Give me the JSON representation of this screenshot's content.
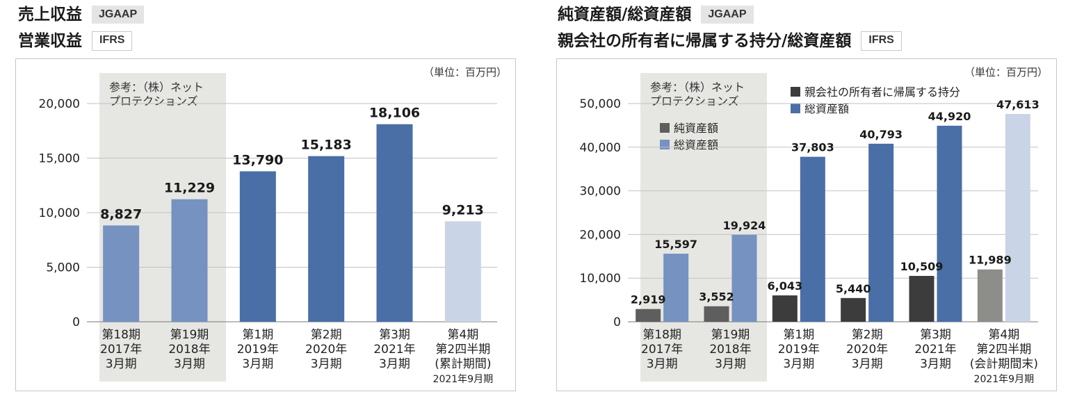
{
  "left": {
    "title1": "売上収益",
    "badge1": "JGAAP",
    "title2": "営業収益",
    "badge2": "IFRS"
  },
  "right": {
    "title1": "純資産額/総資産額",
    "badge1": "JGAAP",
    "title2": "親会社の所有者に帰属する持分/総資産額",
    "badge2": "IFRS"
  },
  "colors": {
    "dark_blue": "#4a6ea6",
    "mid_blue": "#7592c0",
    "light_blue": "#c9d5e6",
    "dark_gray": "#3c3c3c",
    "mid_gray": "#5e5e5e",
    "light_gray": "#8d8d8a",
    "shade": "#e6e6e3"
  },
  "chart_data": [
    {
      "type": "bar",
      "unit_label": "（単位：百万円）",
      "reference_note": [
        "参考：（株）ネット",
        "プロテクションズ"
      ],
      "ylim": [
        0,
        20000
      ],
      "yticks": [
        "0",
        "5,000",
        "10,000",
        "15,000",
        "20,000"
      ],
      "ytick_values": [
        0,
        5000,
        10000,
        15000,
        20000
      ],
      "grid": true,
      "categories": [
        [
          "第18期",
          "2017年",
          "3月期"
        ],
        [
          "第19期",
          "2018年",
          "3月期"
        ],
        [
          "第1期",
          "2019年",
          "3月期"
        ],
        [
          "第2期",
          "2020年",
          "3月期"
        ],
        [
          "第3期",
          "2021年",
          "3月期"
        ],
        [
          "第4期",
          "第2四半期",
          "(累計期間)",
          "2021年9月期"
        ]
      ],
      "values": [
        8827,
        11229,
        13790,
        15183,
        18106,
        9213
      ],
      "labels": [
        "8,827",
        "11,229",
        "13,790",
        "15,183",
        "18,106",
        "9,213"
      ],
      "bar_colors": [
        "#7592c0",
        "#7592c0",
        "#4a6ea6",
        "#4a6ea6",
        "#4a6ea6",
        "#c9d5e6"
      ]
    },
    {
      "type": "bar",
      "unit_label": "（単位：百万円）",
      "reference_note": [
        "参考：（株）ネット",
        "プロテクションズ"
      ],
      "ylim": [
        0,
        50000
      ],
      "yticks": [
        "0",
        "10,000",
        "20,000",
        "30,000",
        "40,000",
        "50,000"
      ],
      "ytick_values": [
        0,
        10000,
        20000,
        30000,
        40000,
        50000
      ],
      "grid": true,
      "categories": [
        [
          "第18期",
          "2017年",
          "3月期"
        ],
        [
          "第19期",
          "2018年",
          "3月期"
        ],
        [
          "第1期",
          "2019年",
          "3月期"
        ],
        [
          "第2期",
          "2020年",
          "3月期"
        ],
        [
          "第3期",
          "2021年",
          "3月期"
        ],
        [
          "第4期",
          "第2四半期",
          "(会計期間末)",
          "2021年9月期"
        ]
      ],
      "legend_jgaap": [
        {
          "name": "純資産額",
          "color": "#5e5e5e"
        },
        {
          "name": "総資産額",
          "color": "#7592c0"
        }
      ],
      "legend_ifrs": [
        {
          "name": "親会社の所有者に帰属する持分",
          "color": "#3c3c3c"
        },
        {
          "name": "総資産額",
          "color": "#4a6ea6"
        }
      ],
      "series": [
        {
          "values": [
            2919,
            3552,
            6043,
            5440,
            10509,
            11989
          ],
          "labels": [
            "2,919",
            "3,552",
            "6,043",
            "5,440",
            "10,509",
            "11,989"
          ],
          "colors": [
            "#5e5e5e",
            "#5e5e5e",
            "#3c3c3c",
            "#3c3c3c",
            "#3c3c3c",
            "#8d8d8a"
          ]
        },
        {
          "values": [
            15597,
            19924,
            37803,
            40793,
            44920,
            47613
          ],
          "labels": [
            "15,597",
            "19,924",
            "37,803",
            "40,793",
            "44,920",
            "47,613"
          ],
          "colors": [
            "#7592c0",
            "#7592c0",
            "#4a6ea6",
            "#4a6ea6",
            "#4a6ea6",
            "#c9d5e6"
          ]
        }
      ]
    }
  ]
}
